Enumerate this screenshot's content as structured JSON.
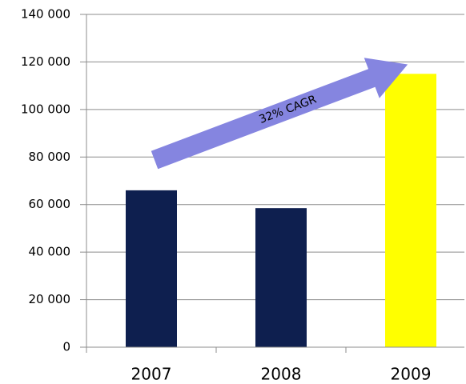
{
  "chart_data": {
    "type": "bar",
    "categories": [
      "2007",
      "2008",
      "2009"
    ],
    "values": [
      66000,
      58500,
      115000
    ],
    "colors": [
      "#0e1f4f",
      "#0e1f4f",
      "#ffff00"
    ],
    "ylim": [
      0,
      140000
    ],
    "yticks": [
      0,
      {
        "value": 20000,
        "label": "20 000"
      },
      {
        "value": 40000,
        "label": "40 000"
      },
      {
        "value": 60000,
        "label": "60 000"
      },
      {
        "value": 80000,
        "label": "80 000"
      },
      {
        "value": 100000,
        "label": "100 000"
      },
      {
        "value": 120000,
        "label": "120 000"
      },
      {
        "value": 140000,
        "label": "140 000"
      }
    ],
    "grid": true,
    "annotation": "32% CAGR"
  }
}
